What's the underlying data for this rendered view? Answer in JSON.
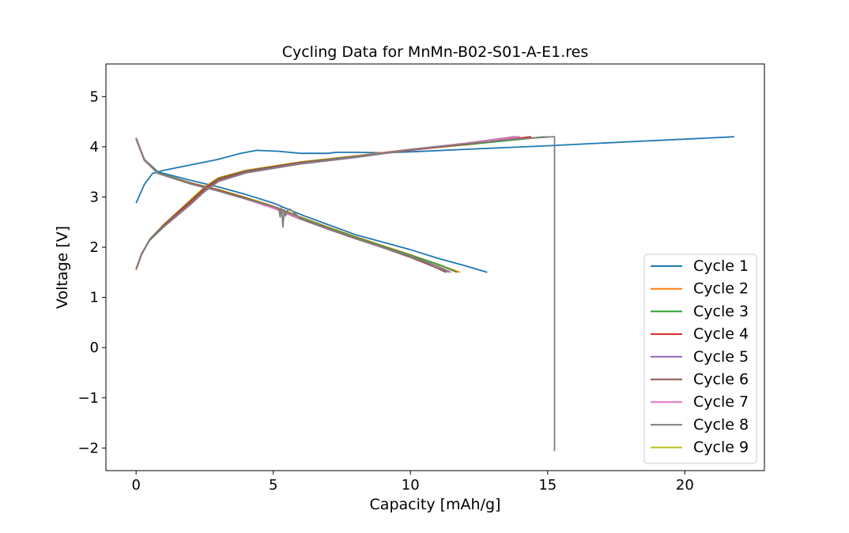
{
  "chart_data": {
    "type": "line",
    "title": "Cycling Data for MnMn-B02-S01-A-E1.res",
    "xlabel": "Capacity [mAh/g]",
    "ylabel": "Voltage [V]",
    "xlim": [
      -1.1,
      22.9
    ],
    "ylim": [
      -2.45,
      5.65
    ],
    "xticks": [
      0,
      5,
      10,
      15,
      20
    ],
    "yticks": [
      -2,
      -1,
      0,
      1,
      2,
      3,
      4,
      5
    ],
    "xtick_labels": [
      "0",
      "5",
      "10",
      "15",
      "20"
    ],
    "ytick_labels": [
      "−2",
      "−1",
      "0",
      "1",
      "2",
      "3",
      "4",
      "5"
    ],
    "legend_position": "lower-right",
    "grid": false,
    "series": [
      {
        "name": "Cycle 1",
        "color": "#1f77b4",
        "charge": [
          [
            0,
            2.88
          ],
          [
            0.3,
            3.25
          ],
          [
            0.6,
            3.47
          ],
          [
            1.0,
            3.53
          ],
          [
            2.0,
            3.64
          ],
          [
            3.0,
            3.75
          ],
          [
            3.8,
            3.87
          ],
          [
            4.4,
            3.93
          ],
          [
            5.2,
            3.91
          ],
          [
            6.0,
            3.87
          ],
          [
            7.0,
            3.87
          ],
          [
            7.3,
            3.89
          ],
          [
            8.0,
            3.89
          ],
          [
            9.0,
            3.88
          ],
          [
            10.0,
            3.9
          ],
          [
            12.0,
            3.95
          ],
          [
            15.0,
            4.02
          ],
          [
            18.0,
            4.1
          ],
          [
            21.8,
            4.2
          ]
        ],
        "discharge": [
          [
            0,
            4.17
          ],
          [
            0.3,
            3.75
          ],
          [
            0.8,
            3.5
          ],
          [
            2.0,
            3.33
          ],
          [
            3.0,
            3.2
          ],
          [
            4.0,
            3.05
          ],
          [
            5.0,
            2.88
          ],
          [
            6.0,
            2.65
          ],
          [
            7.0,
            2.45
          ],
          [
            8.0,
            2.25
          ],
          [
            9.0,
            2.1
          ],
          [
            10.0,
            1.95
          ],
          [
            11.0,
            1.78
          ],
          [
            12.0,
            1.63
          ],
          [
            12.8,
            1.5
          ]
        ]
      },
      {
        "name": "Cycle 2",
        "color": "#ff7f0e",
        "charge": [
          [
            0,
            1.55
          ],
          [
            0.2,
            1.85
          ],
          [
            0.5,
            2.15
          ],
          [
            1.0,
            2.45
          ],
          [
            2.0,
            2.95
          ],
          [
            2.5,
            3.2
          ],
          [
            3.0,
            3.38
          ],
          [
            4.0,
            3.53
          ],
          [
            6.0,
            3.7
          ],
          [
            8.0,
            3.82
          ],
          [
            10.0,
            3.95
          ],
          [
            12.0,
            4.05
          ],
          [
            15.0,
            4.2
          ]
        ],
        "discharge": [
          [
            0,
            4.17
          ],
          [
            0.3,
            3.75
          ],
          [
            0.8,
            3.48
          ],
          [
            2.0,
            3.28
          ],
          [
            3.0,
            3.15
          ],
          [
            4.0,
            2.99
          ],
          [
            5.0,
            2.82
          ],
          [
            6.0,
            2.6
          ],
          [
            7.0,
            2.4
          ],
          [
            8.0,
            2.21
          ],
          [
            9.0,
            2.03
          ],
          [
            10.0,
            1.85
          ],
          [
            11.0,
            1.66
          ],
          [
            11.8,
            1.5
          ]
        ]
      },
      {
        "name": "Cycle 3",
        "color": "#2ca02c",
        "charge": [
          [
            0,
            1.56
          ],
          [
            0.2,
            1.86
          ],
          [
            0.5,
            2.16
          ],
          [
            1.0,
            2.44
          ],
          [
            2.0,
            2.93
          ],
          [
            2.5,
            3.18
          ],
          [
            3.0,
            3.37
          ],
          [
            4.0,
            3.52
          ],
          [
            6.0,
            3.69
          ],
          [
            8.0,
            3.81
          ],
          [
            10.0,
            3.94
          ],
          [
            12.0,
            4.04
          ],
          [
            14.9,
            4.2
          ]
        ],
        "discharge": [
          [
            0,
            4.16
          ],
          [
            0.3,
            3.74
          ],
          [
            0.8,
            3.48
          ],
          [
            2.0,
            3.28
          ],
          [
            3.0,
            3.14
          ],
          [
            4.0,
            2.98
          ],
          [
            5.0,
            2.81
          ],
          [
            6.0,
            2.59
          ],
          [
            7.0,
            2.39
          ],
          [
            8.0,
            2.2
          ],
          [
            9.0,
            2.02
          ],
          [
            10.0,
            1.84
          ],
          [
            11.0,
            1.66
          ],
          [
            11.7,
            1.5
          ]
        ]
      },
      {
        "name": "Cycle 4",
        "color": "#d62728",
        "charge": [
          [
            0,
            1.56
          ],
          [
            0.2,
            1.86
          ],
          [
            0.5,
            2.15
          ],
          [
            1.0,
            2.43
          ],
          [
            2.0,
            2.91
          ],
          [
            2.5,
            3.16
          ],
          [
            3.0,
            3.35
          ],
          [
            4.0,
            3.51
          ],
          [
            6.0,
            3.68
          ],
          [
            8.0,
            3.8
          ],
          [
            10.0,
            3.93
          ],
          [
            12.0,
            4.05
          ],
          [
            14.4,
            4.2
          ]
        ],
        "discharge": [
          [
            0,
            4.15
          ],
          [
            0.3,
            3.73
          ],
          [
            0.8,
            3.47
          ],
          [
            2.0,
            3.27
          ],
          [
            3.0,
            3.13
          ],
          [
            4.0,
            2.97
          ],
          [
            5.0,
            2.79
          ],
          [
            6.0,
            2.57
          ],
          [
            7.0,
            2.37
          ],
          [
            8.0,
            2.18
          ],
          [
            9.0,
            2.0
          ],
          [
            10.0,
            1.81
          ],
          [
            11.0,
            1.62
          ],
          [
            11.4,
            1.5
          ]
        ]
      },
      {
        "name": "Cycle 5",
        "color": "#9467bd",
        "charge": [
          [
            0,
            1.57
          ],
          [
            0.2,
            1.87
          ],
          [
            0.5,
            2.15
          ],
          [
            1.0,
            2.42
          ],
          [
            2.0,
            2.88
          ],
          [
            2.5,
            3.13
          ],
          [
            3.0,
            3.33
          ],
          [
            4.0,
            3.5
          ],
          [
            6.0,
            3.67
          ],
          [
            8.0,
            3.8
          ],
          [
            10.0,
            3.95
          ],
          [
            12.0,
            4.07
          ],
          [
            13.8,
            4.2
          ]
        ],
        "discharge": [
          [
            0,
            4.15
          ],
          [
            0.3,
            3.73
          ],
          [
            0.8,
            3.47
          ],
          [
            2.0,
            3.26
          ],
          [
            3.0,
            3.12
          ],
          [
            4.0,
            2.96
          ],
          [
            5.0,
            2.78
          ],
          [
            6.0,
            2.56
          ],
          [
            7.0,
            2.36
          ],
          [
            8.0,
            2.17
          ],
          [
            9.0,
            1.99
          ],
          [
            10.0,
            1.8
          ],
          [
            11.0,
            1.58
          ],
          [
            11.3,
            1.5
          ]
        ]
      },
      {
        "name": "Cycle 6",
        "color": "#8c564b",
        "charge": [
          [
            0,
            1.57
          ],
          [
            0.2,
            1.87
          ],
          [
            0.5,
            2.15
          ],
          [
            1.0,
            2.41
          ],
          [
            2.0,
            2.87
          ],
          [
            2.5,
            3.12
          ],
          [
            3.0,
            3.32
          ],
          [
            4.0,
            3.49
          ],
          [
            6.0,
            3.66
          ],
          [
            8.0,
            3.79
          ],
          [
            10.0,
            3.94
          ],
          [
            12.0,
            4.07
          ],
          [
            13.9,
            4.2
          ]
        ],
        "discharge": [
          [
            0,
            4.15
          ],
          [
            0.3,
            3.73
          ],
          [
            0.8,
            3.47
          ],
          [
            2.0,
            3.26
          ],
          [
            3.0,
            3.12
          ],
          [
            4.0,
            2.96
          ],
          [
            5.0,
            2.78
          ],
          [
            6.0,
            2.56
          ],
          [
            7.0,
            2.36
          ],
          [
            8.0,
            2.17
          ],
          [
            9.0,
            1.99
          ],
          [
            10.0,
            1.8
          ],
          [
            11.0,
            1.58
          ],
          [
            11.3,
            1.5
          ]
        ]
      },
      {
        "name": "Cycle 7",
        "color": "#e377c2",
        "charge": [
          [
            0,
            1.57
          ],
          [
            0.2,
            1.87
          ],
          [
            0.5,
            2.14
          ],
          [
            1.0,
            2.4
          ],
          [
            2.0,
            2.86
          ],
          [
            2.5,
            3.11
          ],
          [
            3.0,
            3.31
          ],
          [
            4.0,
            3.48
          ],
          [
            6.0,
            3.66
          ],
          [
            8.0,
            3.79
          ],
          [
            10.0,
            3.94
          ],
          [
            12.0,
            4.07
          ],
          [
            14.0,
            4.2
          ]
        ],
        "discharge": [
          [
            0,
            4.15
          ],
          [
            0.3,
            3.73
          ],
          [
            0.8,
            3.47
          ],
          [
            2.0,
            3.26
          ],
          [
            3.0,
            3.12
          ],
          [
            4.0,
            2.96
          ],
          [
            5.0,
            2.78
          ],
          [
            6.0,
            2.57
          ],
          [
            7.0,
            2.37
          ],
          [
            8.0,
            2.18
          ],
          [
            9.0,
            2.0
          ],
          [
            10.0,
            1.82
          ],
          [
            11.0,
            1.62
          ],
          [
            11.5,
            1.5
          ]
        ]
      },
      {
        "name": "Cycle 8",
        "color": "#7f7f7f",
        "charge": [
          [
            0,
            1.57
          ],
          [
            0.2,
            1.87
          ],
          [
            0.5,
            2.14
          ],
          [
            1.0,
            2.4
          ],
          [
            2.0,
            2.86
          ],
          [
            2.5,
            3.11
          ],
          [
            3.0,
            3.31
          ],
          [
            4.0,
            3.48
          ],
          [
            6.0,
            3.66
          ],
          [
            8.0,
            3.79
          ],
          [
            10.0,
            3.94
          ],
          [
            12.0,
            4.06
          ],
          [
            14.0,
            4.16
          ],
          [
            15.2,
            4.2
          ],
          [
            15.25,
            4.2
          ],
          [
            15.25,
            -2.05
          ],
          [
            15.25,
            4.2
          ]
        ],
        "discharge": [
          [
            0,
            4.18
          ],
          [
            0.3,
            3.74
          ],
          [
            0.8,
            3.47
          ],
          [
            2.0,
            3.26
          ],
          [
            3.0,
            3.12
          ],
          [
            4.0,
            2.96
          ],
          [
            5.0,
            2.81
          ],
          [
            5.2,
            2.78
          ],
          [
            5.25,
            2.6
          ],
          [
            5.3,
            2.8
          ],
          [
            5.35,
            2.4
          ],
          [
            5.4,
            2.75
          ],
          [
            5.45,
            2.62
          ],
          [
            5.5,
            2.72
          ],
          [
            5.6,
            2.76
          ],
          [
            6.0,
            2.57
          ],
          [
            7.0,
            2.37
          ],
          [
            8.0,
            2.18
          ],
          [
            9.0,
            2.0
          ],
          [
            10.0,
            1.82
          ],
          [
            11.0,
            1.62
          ],
          [
            11.4,
            1.5
          ]
        ]
      },
      {
        "name": "Cycle 9",
        "color": "#bcbd22",
        "charge": [],
        "discharge": []
      }
    ]
  }
}
